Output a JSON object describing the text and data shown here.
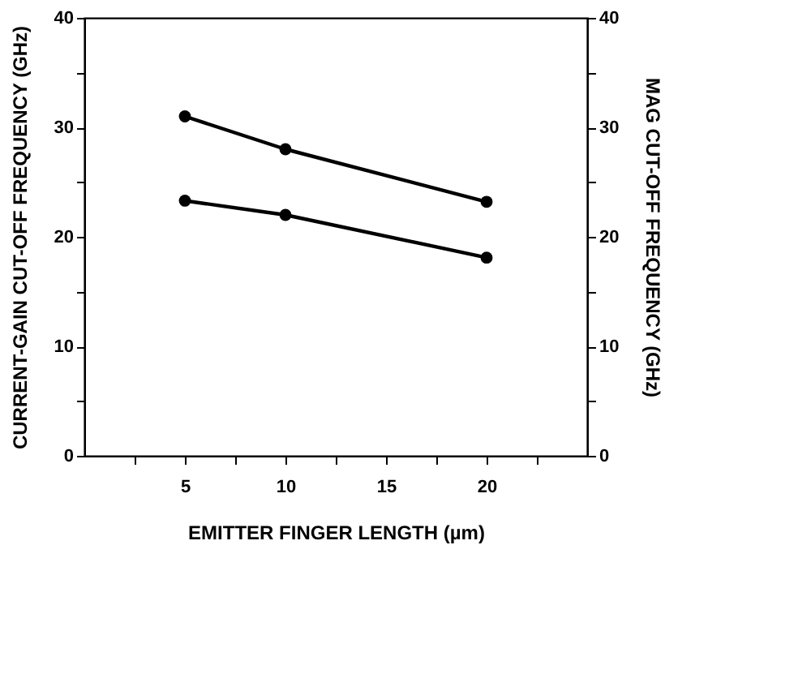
{
  "chart_data": {
    "type": "line",
    "xlabel": "EMITTER FINGER LENGTH (µm)",
    "ylabel": "CURRENT-GAIN  CUT-OFF FREQUENCY (GHz)",
    "y2label": "MAG CUT-OFF FREQUENCY (GHz)",
    "x": [
      5,
      10,
      20
    ],
    "series": [
      {
        "color": "#000000",
        "values": [
          31,
          28,
          23.2
        ]
      },
      {
        "color": "#000000",
        "values": [
          23.3,
          22,
          18.1
        ],
        "axis": "y2"
      }
    ],
    "xlim": [
      0,
      25
    ],
    "xticks": [
      {
        "value": 2.5,
        "label": null
      },
      5,
      {
        "value": 7.5,
        "label": null
      },
      10,
      {
        "value": 12.5,
        "label": null
      },
      15,
      {
        "value": 17.5,
        "label": null
      },
      20,
      {
        "value": 22.5,
        "label": null
      }
    ],
    "ylim": [
      0,
      40
    ],
    "yticks": [
      0,
      {
        "value": 5,
        "label": null
      },
      10,
      {
        "value": 15,
        "label": null
      },
      20,
      {
        "value": 25,
        "label": null
      },
      30,
      {
        "value": 35,
        "label": null
      },
      40
    ],
    "y2lim": [
      0,
      40
    ],
    "y2ticks": [
      0,
      {
        "value": 5,
        "label": null
      },
      10,
      {
        "value": 15,
        "label": null
      },
      20,
      {
        "value": 25,
        "label": null
      },
      30,
      {
        "value": 35,
        "label": null
      },
      40
    ],
    "marker": "circle",
    "line_style": "solid",
    "grid": false
  }
}
